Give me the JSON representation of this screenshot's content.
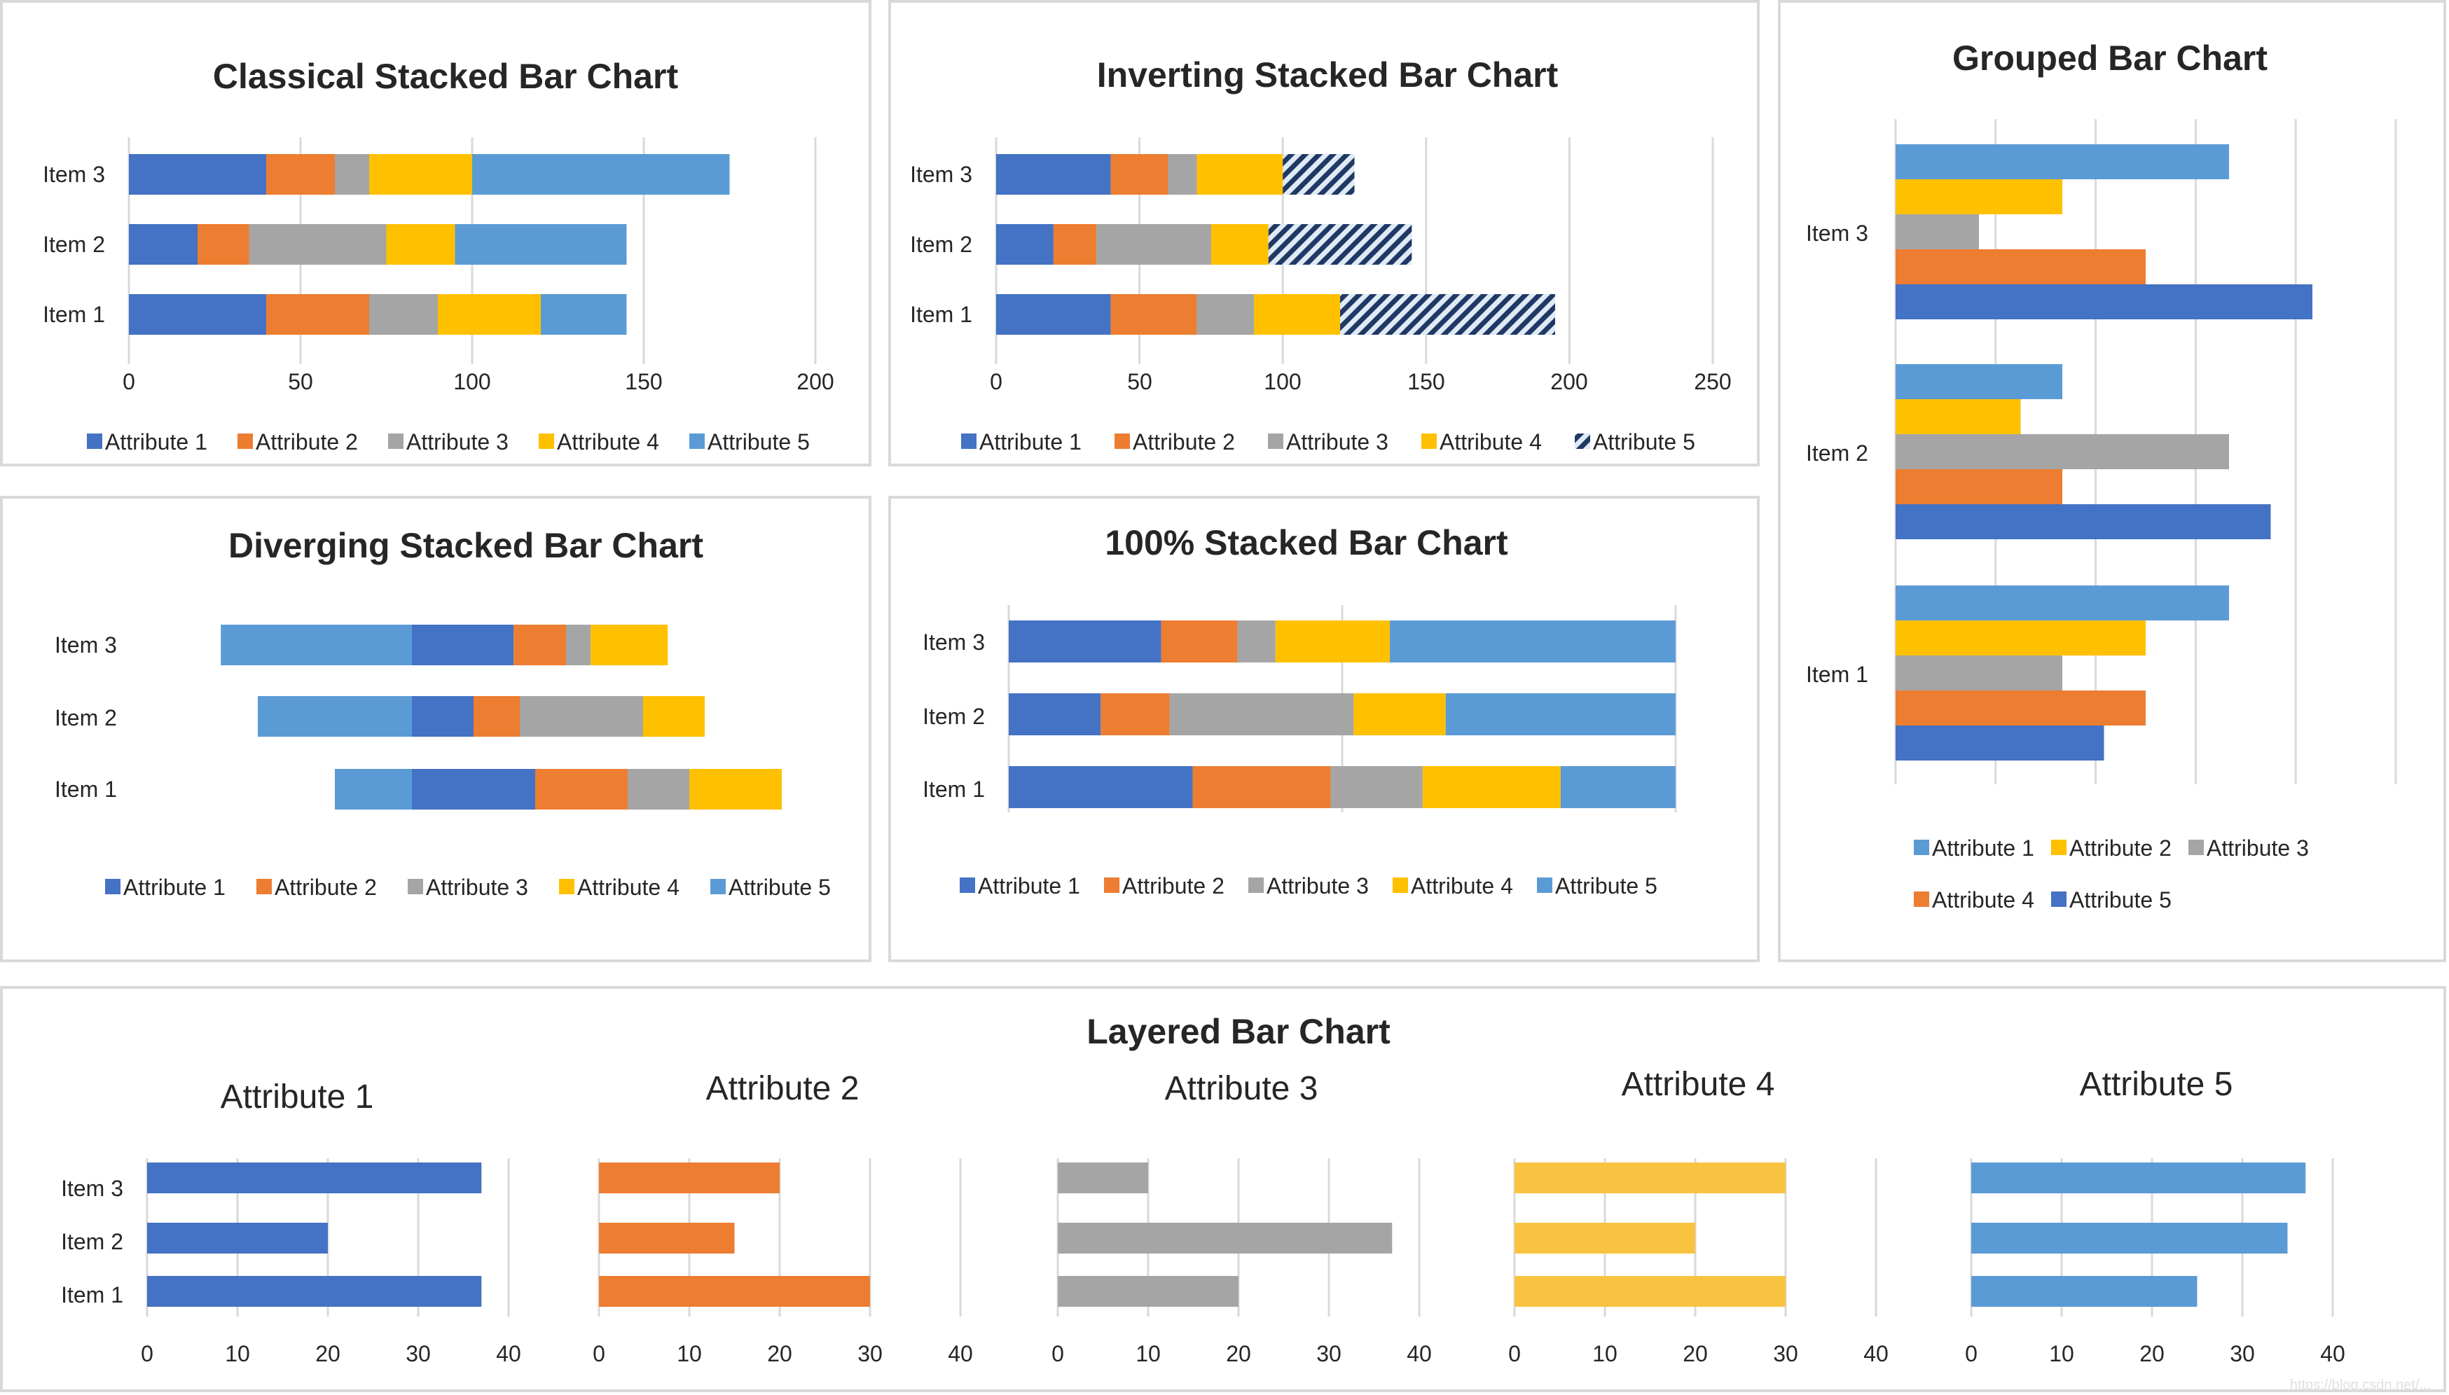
{
  "colors": {
    "attr1": "#4472C4",
    "attr2": "#ED7D31",
    "attr3": "#A5A5A5",
    "attr4": "#FFC000",
    "attr5": "#5B9BD5",
    "attr4_light": "#F9C342",
    "grid": "#D9D9D9",
    "text": "#262626"
  },
  "watermark": "https://blog.csdn.net/...",
  "chart_data": [
    {
      "id": "classical",
      "type": "bar",
      "subtype": "stacked-horizontal",
      "title": "Classical Stacked Bar Chart",
      "categories": [
        "Item 1",
        "Item 2",
        "Item 3"
      ],
      "xlim": [
        0,
        200
      ],
      "xticks": [
        0,
        50,
        100,
        150,
        200
      ],
      "grid": true,
      "legend": "bottom",
      "series": [
        {
          "name": "Attribute 1",
          "color_key": "attr1",
          "values": [
            40,
            20,
            40
          ]
        },
        {
          "name": "Attribute 2",
          "color_key": "attr2",
          "values": [
            30,
            15,
            20
          ]
        },
        {
          "name": "Attribute 3",
          "color_key": "attr3",
          "values": [
            20,
            40,
            10
          ]
        },
        {
          "name": "Attribute 4",
          "color_key": "attr4",
          "values": [
            30,
            20,
            30
          ]
        },
        {
          "name": "Attribute 5",
          "color_key": "attr5",
          "values": [
            25,
            50,
            75
          ]
        }
      ]
    },
    {
      "id": "inverting",
      "type": "bar",
      "subtype": "stacked-horizontal",
      "title": "Inverting Stacked Bar Chart",
      "categories": [
        "Item 1",
        "Item 2",
        "Item 3"
      ],
      "xlim": [
        0,
        250
      ],
      "xticks": [
        0,
        50,
        100,
        150,
        200,
        250
      ],
      "grid": true,
      "legend": "bottom",
      "hatched_series": "Attribute 5",
      "series": [
        {
          "name": "Attribute 1",
          "color_key": "attr1",
          "values": [
            40,
            20,
            40
          ]
        },
        {
          "name": "Attribute 2",
          "color_key": "attr2",
          "values": [
            30,
            15,
            20
          ]
        },
        {
          "name": "Attribute 3",
          "color_key": "attr3",
          "values": [
            20,
            40,
            10
          ]
        },
        {
          "name": "Attribute 4",
          "color_key": "attr4",
          "values": [
            30,
            20,
            30
          ]
        },
        {
          "name": "Attribute 5",
          "color_key": "attr1",
          "values": [
            75,
            50,
            25
          ]
        }
      ]
    },
    {
      "id": "grouped",
      "type": "bar",
      "subtype": "grouped-horizontal",
      "title": "Grouped Bar Chart",
      "categories": [
        "Item 1",
        "Item 2",
        "Item 3"
      ],
      "xlim": [
        0,
        60
      ],
      "grid": true,
      "legend": "bottom",
      "series": [
        {
          "name": "Attribute 1",
          "color_key": "attr5",
          "values": [
            40,
            20,
            40
          ]
        },
        {
          "name": "Attribute 2",
          "color_key": "attr4",
          "values": [
            30,
            15,
            20
          ]
        },
        {
          "name": "Attribute 3",
          "color_key": "attr3",
          "values": [
            20,
            40,
            10
          ]
        },
        {
          "name": "Attribute 4",
          "color_key": "attr2",
          "values": [
            30,
            20,
            30
          ]
        },
        {
          "name": "Attribute 5",
          "color_key": "attr1",
          "values": [
            25,
            45,
            50
          ]
        }
      ]
    },
    {
      "id": "diverging",
      "type": "bar",
      "subtype": "diverging-stacked-horizontal",
      "title": "Diverging Stacked Bar Chart",
      "categories": [
        "Item 1",
        "Item 2",
        "Item 3"
      ],
      "legend": "bottom",
      "left_series": "Attribute 5",
      "series": [
        {
          "name": "Attribute 1",
          "color_key": "attr1",
          "values": [
            40,
            20,
            33
          ]
        },
        {
          "name": "Attribute 2",
          "color_key": "attr2",
          "values": [
            30,
            15,
            17
          ]
        },
        {
          "name": "Attribute 3",
          "color_key": "attr3",
          "values": [
            20,
            40,
            8
          ]
        },
        {
          "name": "Attribute 4",
          "color_key": "attr4",
          "values": [
            30,
            20,
            25
          ]
        },
        {
          "name": "Attribute 5",
          "color_key": "attr5",
          "values": [
            25,
            50,
            62
          ]
        }
      ]
    },
    {
      "id": "percent",
      "type": "bar",
      "subtype": "100-percent-stacked-horizontal",
      "title": "100% Stacked Bar Chart",
      "categories": [
        "Item 1",
        "Item 2",
        "Item 3"
      ],
      "grid": true,
      "legend": "bottom",
      "series": [
        {
          "name": "Attribute 1",
          "color_key": "attr1",
          "values": [
            40,
            20,
            40
          ]
        },
        {
          "name": "Attribute 2",
          "color_key": "attr2",
          "values": [
            30,
            15,
            20
          ]
        },
        {
          "name": "Attribute 3",
          "color_key": "attr3",
          "values": [
            20,
            40,
            10
          ]
        },
        {
          "name": "Attribute 4",
          "color_key": "attr4",
          "values": [
            30,
            20,
            30
          ]
        },
        {
          "name": "Attribute 5",
          "color_key": "attr5",
          "values": [
            25,
            50,
            75
          ]
        }
      ]
    },
    {
      "id": "layered",
      "type": "bar",
      "subtype": "small-multiples-horizontal",
      "title": "Layered Bar Chart",
      "categories": [
        "Item 1",
        "Item 2",
        "Item 3"
      ],
      "xlim": [
        0,
        40
      ],
      "xticks": [
        0,
        10,
        20,
        30,
        40
      ],
      "grid": true,
      "panels": [
        {
          "name": "Attribute 1",
          "color_key": "attr1",
          "values": [
            37,
            20,
            37
          ]
        },
        {
          "name": "Attribute 2",
          "color_key": "attr2",
          "values": [
            30,
            15,
            20
          ]
        },
        {
          "name": "Attribute 3",
          "color_key": "attr3",
          "values": [
            20,
            37,
            10
          ]
        },
        {
          "name": "Attribute 4",
          "color_key": "attr4_light",
          "values": [
            30,
            20,
            30
          ]
        },
        {
          "name": "Attribute 5",
          "color_key": "attr5",
          "values": [
            25,
            35,
            37
          ]
        }
      ]
    }
  ]
}
